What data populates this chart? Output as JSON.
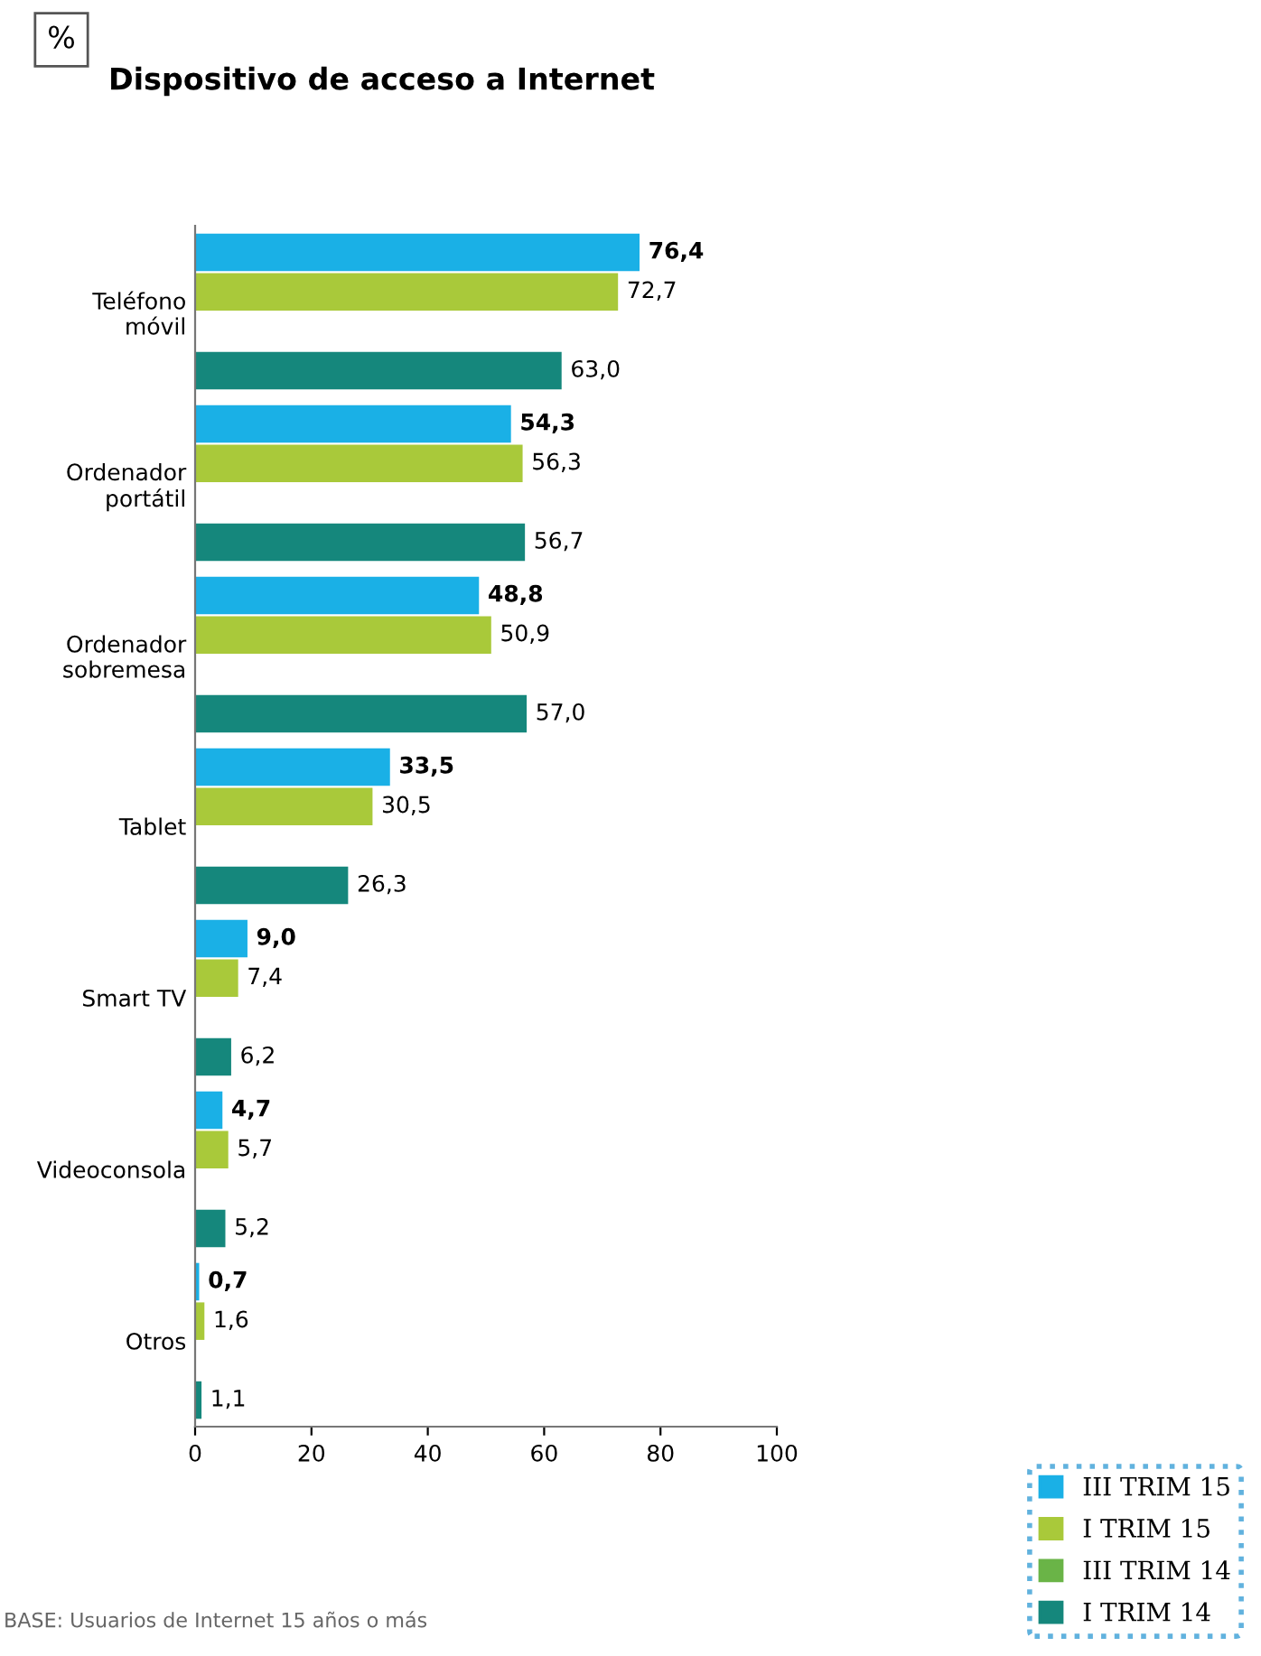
{
  "chart_data": {
    "type": "bar",
    "orientation": "horizontal",
    "title": "Dispositivo de acceso a Internet",
    "categories": [
      "Teléfono\nmóvil",
      "Ordenador\nportátil",
      "Ordenador\nsobremesa",
      "Tablet",
      "Smart TV",
      "Videoconsola",
      "Otros"
    ],
    "series": [
      {
        "name": "III TRIM 15",
        "color": "#1ab0e6",
        "values": [
          76.4,
          54.3,
          48.8,
          33.5,
          9.0,
          4.7,
          0.7
        ],
        "value_labels": [
          "76,4",
          "54,3",
          "48,8",
          "33,5",
          "9,0",
          "4,7",
          "0,7"
        ]
      },
      {
        "name": "I TRIM 15",
        "color": "#a9c93a",
        "values": [
          72.7,
          56.3,
          50.9,
          30.5,
          7.4,
          5.7,
          1.6
        ],
        "value_labels": [
          "72,7",
          "56,3",
          "50,9",
          "30,5",
          "7,4",
          "5,7",
          "1,6"
        ]
      },
      {
        "name": "III TRIM 14",
        "color": "#6ab447",
        "values": [
          null,
          null,
          null,
          null,
          null,
          null,
          null
        ]
      },
      {
        "name": "I TRIM 14",
        "color": "#15877c",
        "values": [
          63.0,
          56.7,
          57.0,
          26.3,
          6.2,
          5.2,
          1.1
        ],
        "value_labels": [
          "63,0",
          "56,7",
          "57,0",
          "26,3",
          "6,2",
          "5,2",
          "1,1"
        ]
      }
    ],
    "xlim": [
      0,
      100
    ],
    "xticks": [
      0,
      20,
      40,
      60,
      80,
      100
    ],
    "grid": false,
    "legend": "bottom right",
    "annotations": [
      "%",
      "BASE: Usuarios de Internet 15 años o más"
    ]
  }
}
